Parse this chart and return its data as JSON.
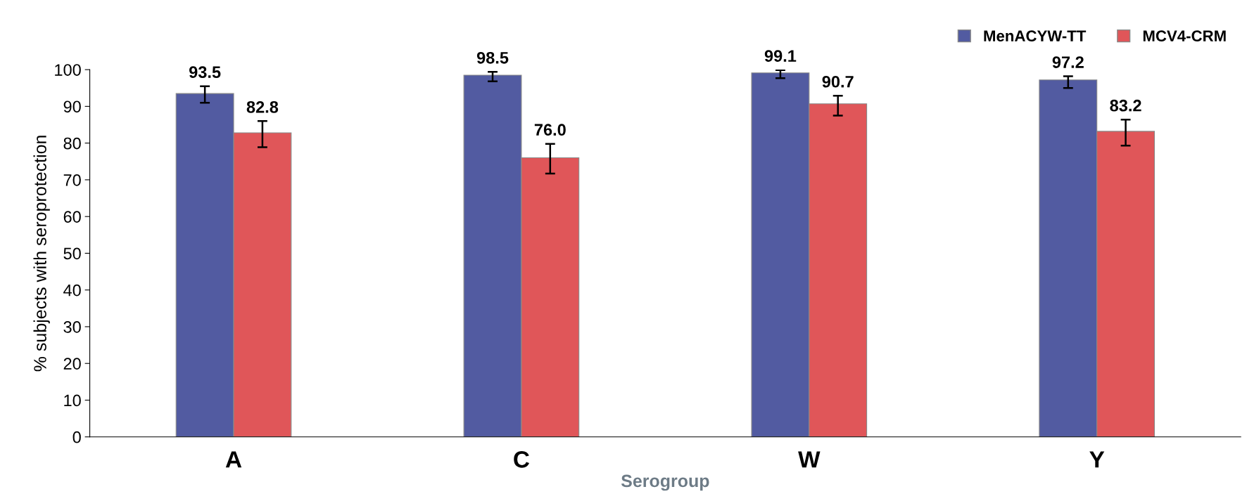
{
  "chart_data": {
    "type": "bar",
    "xlabel": "Serogroup",
    "ylabel": "% subjects with seroprotection",
    "categories": [
      "A",
      "C",
      "W",
      "Y"
    ],
    "series": [
      {
        "name": "MenACYW-TT",
        "color": "#525ba1",
        "values": [
          93.5,
          98.5,
          99.1,
          97.2
        ],
        "errors": [
          [
            91.0,
            95.5
          ],
          [
            96.8,
            99.4
          ],
          [
            97.7,
            99.9
          ],
          [
            95.0,
            98.2
          ]
        ]
      },
      {
        "name": "MCV4-CRM",
        "color": "#e05659",
        "values": [
          82.8,
          76.0,
          90.7,
          83.2
        ],
        "errors": [
          [
            78.9,
            86.0
          ],
          [
            71.7,
            79.8
          ],
          [
            87.5,
            92.9
          ],
          [
            79.3,
            86.4
          ]
        ]
      }
    ],
    "value_labels": [
      [
        "93.5",
        "98.5",
        "99.1",
        "97.2"
      ],
      [
        "82.8",
        "76.0",
        "90.7",
        "83.2"
      ]
    ],
    "ylim": [
      0,
      100
    ],
    "yticks": [
      0,
      10,
      20,
      30,
      40,
      50,
      60,
      70,
      80,
      90,
      100
    ],
    "grid": false,
    "legend": "top right"
  }
}
